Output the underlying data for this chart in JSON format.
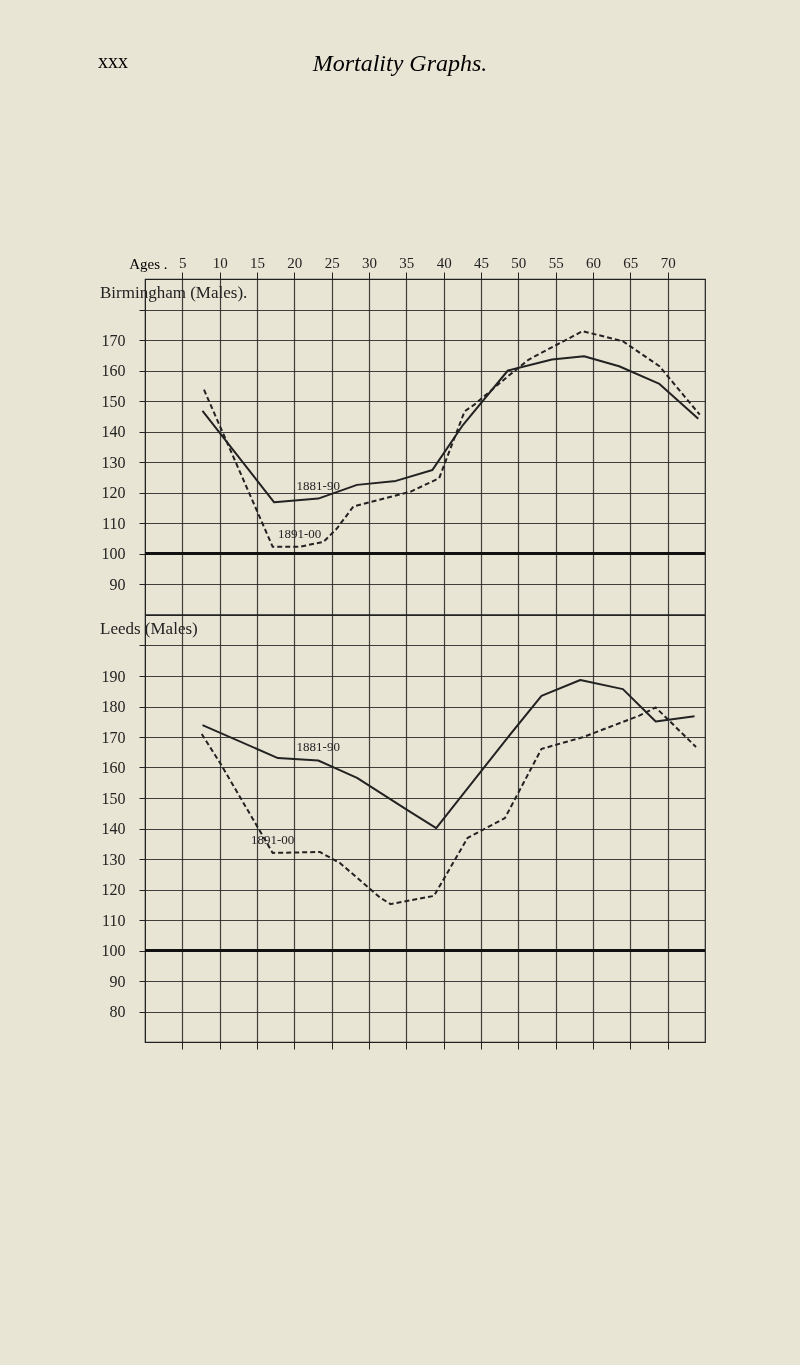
{
  "chart_data": [
    {
      "type": "line",
      "title": "Birmingham (Males).",
      "annotations": [
        "xxx",
        "Mortality Graphs."
      ],
      "xlabel": "Ages .",
      "xlim": [
        0,
        75
      ],
      "xticks": [
        5,
        10,
        15,
        20,
        25,
        30,
        35,
        40,
        45,
        50,
        55,
        60,
        65,
        70
      ],
      "ylim": [
        80,
        190
      ],
      "yticks": [
        90,
        100,
        110,
        120,
        130,
        140,
        150,
        160,
        170,
        {
          "value": 180,
          "label": null
        }
      ],
      "grid": true,
      "ref_lines": [
        {
          "axis": "y",
          "value": 100
        }
      ],
      "series": [
        {
          "name": "1881-90",
          "color": "#222222",
          "line_style": "solid",
          "x": [
            7.7,
            17.3,
            23.2,
            28.4,
            33.6,
            38.5,
            42.6,
            48.6,
            54.5,
            58.8,
            63.5,
            68.9,
            74.1
          ],
          "values": [
            146.8,
            116.8,
            118,
            122.5,
            123.8,
            127.4,
            142.2,
            160,
            163.6,
            164.7,
            161.4,
            155.6,
            144.2
          ]
        },
        {
          "name": "1891-00",
          "color": "#222222",
          "line_style": "dashed",
          "x": [
            7.9,
            17.1,
            20.7,
            23.9,
            25.7,
            27.9,
            35.6,
            39.4,
            42.8,
            44.1,
            48.6,
            51.4,
            58.6,
            64,
            68.9,
            74.3
          ],
          "values": [
            153.7,
            102.2,
            102.2,
            103.8,
            108.2,
            115.4,
            120.3,
            124.7,
            146.6,
            148.8,
            158.1,
            163.6,
            172.9,
            169.6,
            161.4,
            145.5
          ]
        }
      ]
    },
    {
      "type": "line",
      "title": "Leeds (Males)",
      "tick_labels": "y",
      "xlim": [
        0,
        75
      ],
      "xticks": [
        5,
        10,
        15,
        20,
        25,
        30,
        35,
        40,
        45,
        50,
        55,
        60,
        65,
        70
      ],
      "ylim": [
        70,
        210
      ],
      "yticks": [
        80,
        90,
        100,
        110,
        120,
        130,
        140,
        150,
        160,
        170,
        180,
        190,
        {
          "value": 200,
          "label": null
        }
      ],
      "grid": true,
      "ref_lines": [
        {
          "axis": "y",
          "value": 100
        }
      ],
      "series": [
        {
          "name": "1881-90",
          "color": "#222222",
          "line_style": "solid",
          "x": [
            7.7,
            17.8,
            23.2,
            28.4,
            35.1,
            39,
            48.6,
            53.1,
            58.3,
            64,
            68.4,
            73.6
          ],
          "values": [
            173.9,
            163.1,
            162.3,
            156.6,
            146.1,
            140.1,
            169.9,
            183.5,
            188.7,
            185.7,
            175.1,
            176.8
          ]
        },
        {
          "name": "1891-00",
          "color": "#222222",
          "line_style": "dashed",
          "x": [
            7.6,
            10.1,
            17.1,
            23.4,
            26.1,
            31.5,
            32.9,
            38.7,
            43.2,
            48.2,
            53.1,
            58.6,
            66.2,
            68.4,
            73.8
          ],
          "values": [
            171,
            161.3,
            132,
            132.3,
            128.7,
            117.3,
            115.2,
            117.9,
            136.9,
            143.4,
            166.1,
            169.9,
            177,
            179.7,
            166.7
          ]
        }
      ]
    }
  ]
}
